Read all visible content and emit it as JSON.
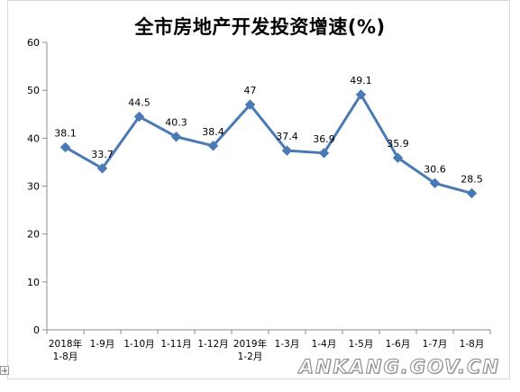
{
  "chart_data": {
    "type": "line",
    "title": "全市房地产开发投资增速(%)",
    "categories": [
      "2018年\n1-8月",
      "1-9月",
      "1-10月",
      "1-11月",
      "1-12月",
      "2019年\n1-2月",
      "1-3月",
      "1-4月",
      "1-5月",
      "1-6月",
      "1-7月",
      "1-8月"
    ],
    "values": [
      38.1,
      33.7,
      44.5,
      40.3,
      38.4,
      47,
      37.4,
      36.9,
      49.1,
      35.9,
      30.6,
      28.5
    ],
    "data_labels": [
      "38.1",
      "33.7",
      "44.5",
      "40.3",
      "38.4",
      "47",
      "37.4",
      "36.9",
      "49.1",
      "35.9",
      "30.6",
      "28.5"
    ],
    "ylim": [
      0,
      60
    ],
    "yticks": [
      0,
      10,
      20,
      30,
      40,
      50,
      60
    ],
    "grid": false,
    "legend": "none",
    "colors": {
      "line": "#4a7ab5",
      "marker": "#4a7ab5",
      "axis": "#8c8c8c",
      "text": "#000000"
    }
  },
  "watermark": "ANKANG.GOV.CN"
}
